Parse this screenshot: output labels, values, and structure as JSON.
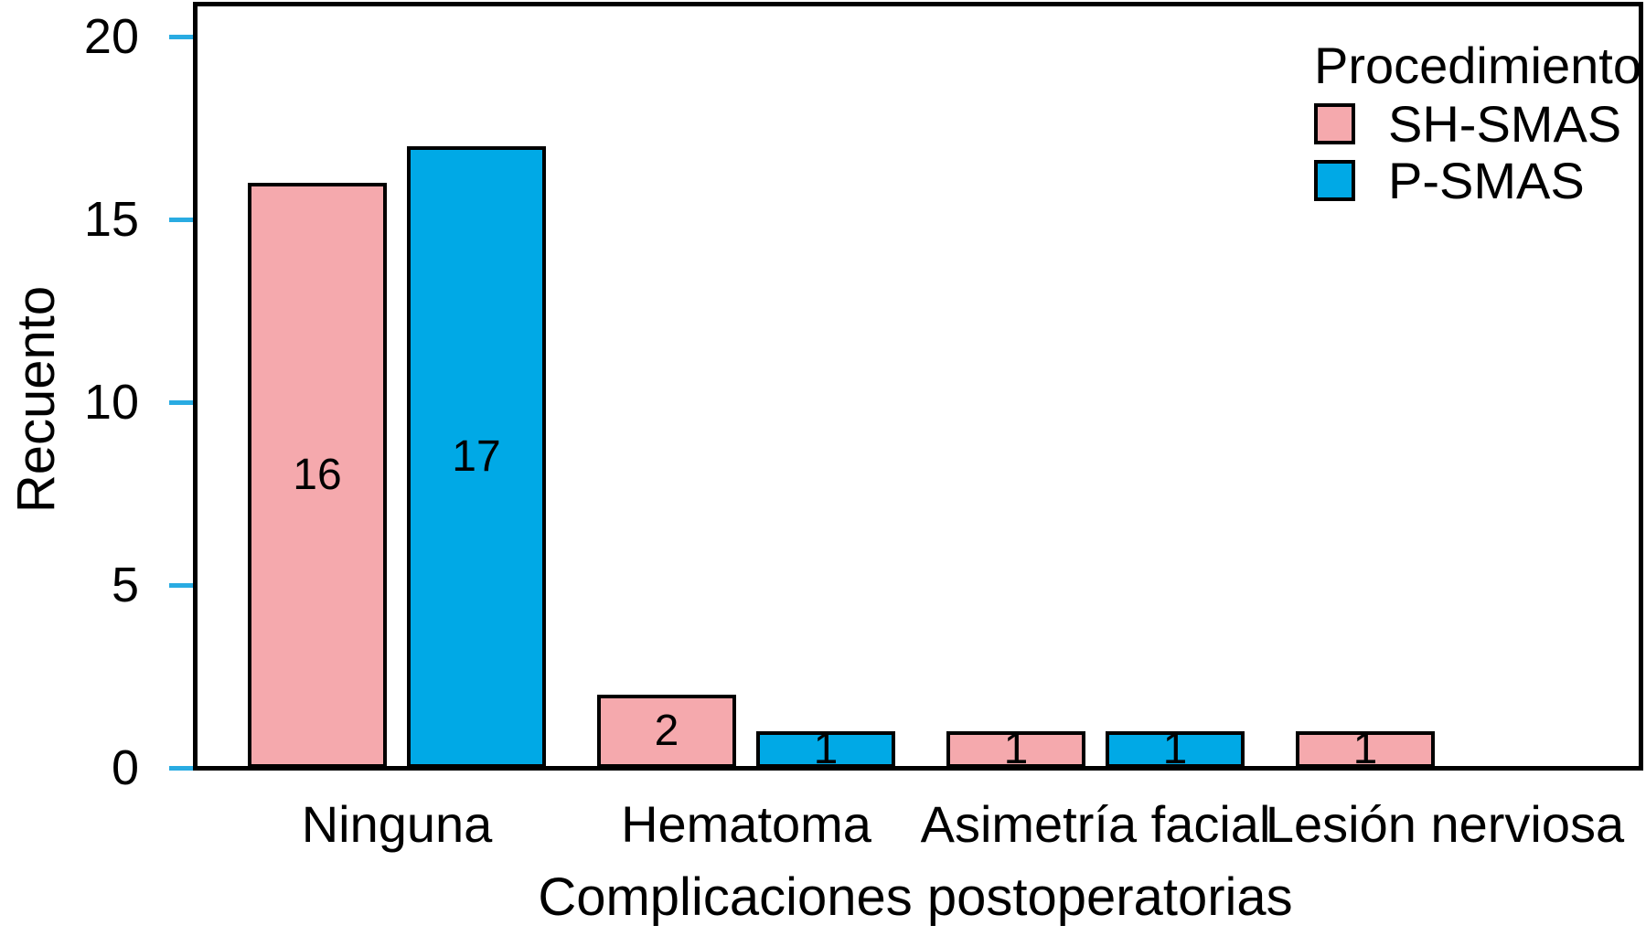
{
  "chart_data": {
    "type": "bar",
    "title": "",
    "xlabel": "Complicaciones postoperatorias",
    "ylabel": "Recuento",
    "categories": [
      "Ninguna",
      "Hematoma",
      "Asimetría facial",
      "Lesión nerviosa"
    ],
    "series": [
      {
        "name": "SH-SMAS",
        "color": "#F5A9AD",
        "values": [
          16,
          2,
          1,
          1
        ]
      },
      {
        "name": "P-SMAS",
        "color": "#00A9E6",
        "values": [
          17,
          1,
          1,
          null
        ]
      }
    ],
    "bar_value_labels": [
      "16",
      "17",
      "2",
      "1",
      "1",
      "1",
      "1"
    ],
    "ylim": [
      0,
      20
    ],
    "yticks": [
      0,
      5,
      10,
      15,
      20
    ],
    "ytick_labels": [
      "0",
      "5",
      "10",
      "15",
      "20"
    ],
    "grid": false,
    "legend": {
      "title": "Procedimiento",
      "position": "top-right-inside",
      "entries": [
        "SH-SMAS",
        "P-SMAS"
      ]
    },
    "colors": {
      "sh_smas_fill": "#F5A9AD",
      "p_smas_fill": "#00A9E6",
      "tick_mark": "#29ABE2",
      "axis_and_text": "#000000",
      "background": "#FFFFFF"
    }
  }
}
